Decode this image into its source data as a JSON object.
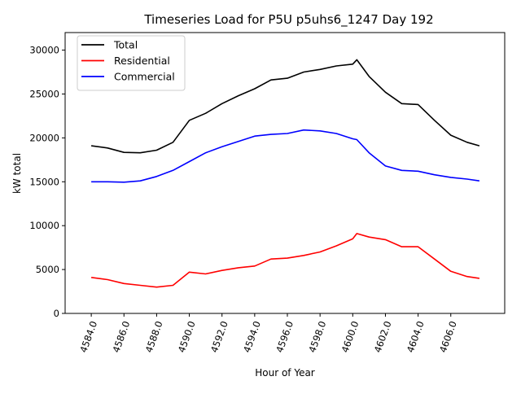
{
  "chart_data": {
    "type": "line",
    "title": "Timeseries Load for P5U p5uhs6_1247  Day 192",
    "xlabel": "Hour of Year",
    "ylabel": "kW total",
    "xlim": [
      4582.4,
      4609.3
    ],
    "ylim": [
      0,
      32000
    ],
    "grid": false,
    "legend_placement": "top-left",
    "xticks": [
      "4584.0",
      "4586.0",
      "4588.0",
      "4590.0",
      "4592.0",
      "4594.0",
      "4596.0",
      "4598.0",
      "4600.0",
      "4602.0",
      "4604.0",
      "4606.0"
    ],
    "yticks": [
      "0",
      "5000",
      "10000",
      "15000",
      "20000",
      "25000",
      "30000"
    ],
    "x": [
      4584,
      4585,
      4586,
      4587,
      4588,
      4589,
      4590,
      4591,
      4592,
      4593,
      4594,
      4595,
      4596,
      4597,
      4598,
      4599,
      4600,
      4600.25,
      4601,
      4602,
      4603,
      4604,
      4605,
      4606,
      4607,
      4607.75
    ],
    "series": [
      {
        "name": "Total",
        "color": "#000000",
        "values": [
          19100,
          18850,
          18350,
          18300,
          18600,
          19500,
          22000,
          22800,
          23900,
          24800,
          25600,
          26600,
          26800,
          27500,
          27800,
          28200,
          28400,
          28900,
          27000,
          25200,
          23900,
          23800,
          22000,
          20300,
          19500,
          19100
        ]
      },
      {
        "name": "Residential",
        "color": "#ff0000",
        "values": [
          4100,
          3850,
          3400,
          3200,
          3000,
          3200,
          4700,
          4500,
          4900,
          5200,
          5400,
          6200,
          6300,
          6600,
          7000,
          7700,
          8500,
          9100,
          8700,
          8400,
          7600,
          7600,
          6200,
          4800,
          4200,
          4000
        ]
      },
      {
        "name": "Commercial",
        "color": "#0000ff",
        "values": [
          15000,
          15000,
          14950,
          15100,
          15600,
          16300,
          17300,
          18300,
          19000,
          19600,
          20200,
          20400,
          20500,
          20900,
          20800,
          20500,
          19900,
          19800,
          18300,
          16800,
          16300,
          16200,
          15800,
          15500,
          15300,
          15100
        ]
      }
    ]
  }
}
